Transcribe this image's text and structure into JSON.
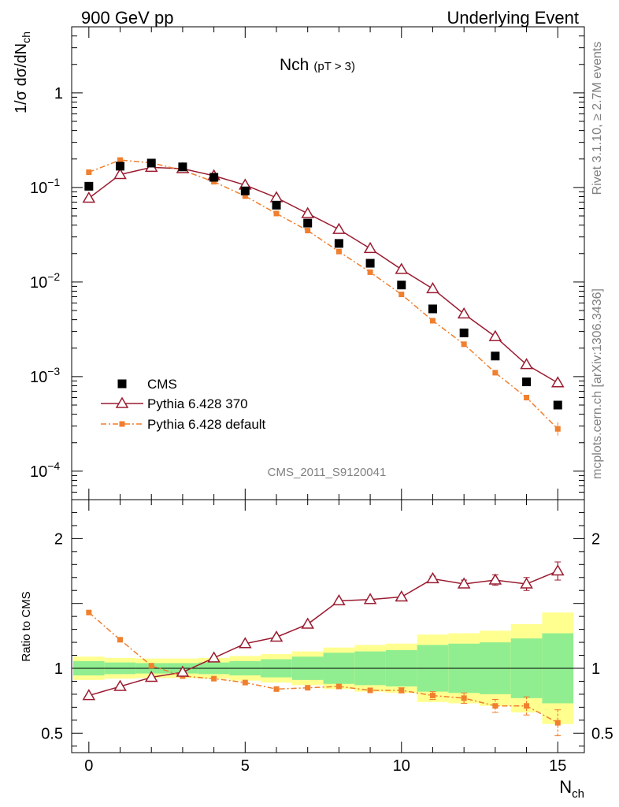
{
  "header": {
    "left": "900 GeV pp",
    "right": "Underlying Event"
  },
  "side": {
    "rivet": "Rivet 3.1.10, ≥ 2.7M events",
    "mcplots": "mcplots.cern.ch [arXiv:1306.3436]"
  },
  "watermark": "CMS_2011_S9120041",
  "chart_data": {
    "type": "scatter",
    "title": "Nch",
    "title_note": "(pT >  3)",
    "xlabel": "N",
    "xlabel_sub": "ch",
    "ylabel": "1/σ dσ/dN",
    "ylabel_sub": "ch",
    "ratio_ylabel": "Ratio to CMS",
    "xlim": [
      -0.55,
      15.85
    ],
    "ylim": [
      5e-05,
      5
    ],
    "yscale": "log",
    "ratio_ylim": [
      0.35,
      2.3
    ],
    "x_ticks": [
      0,
      5,
      10,
      15
    ],
    "y_ticks": [
      {
        "v": 0.0001,
        "base": "10",
        "exp": "−4"
      },
      {
        "v": 0.001,
        "base": "10",
        "exp": "−3"
      },
      {
        "v": 0.01,
        "base": "10",
        "exp": "−2"
      },
      {
        "v": 0.1,
        "base": "10",
        "exp": "−1"
      },
      {
        "v": 1,
        "base": "1",
        "exp": ""
      }
    ],
    "ratio_ticks": [
      {
        "v": 0.5,
        "label": "0.5"
      },
      {
        "v": 1,
        "label": "1"
      },
      {
        "v": 2,
        "label": "2"
      }
    ],
    "legend_position": "bottom-left",
    "x": [
      0,
      1,
      2,
      3,
      4,
      5,
      6,
      7,
      8,
      9,
      10,
      11,
      12,
      13,
      14,
      15
    ],
    "series": [
      {
        "name": "CMS",
        "color": "#000000",
        "marker": "square",
        "values": [
          0.103,
          0.168,
          0.181,
          0.165,
          0.128,
          0.092,
          0.065,
          0.042,
          0.0256,
          0.0158,
          0.0093,
          0.0052,
          0.0029,
          0.00165,
          0.00088,
          0.0005
        ]
      },
      {
        "name": "Pythia 6.428 370",
        "color": "#9b1b30",
        "marker": "open-triangle",
        "line": "solid",
        "values": [
          0.077,
          0.137,
          0.163,
          0.158,
          0.133,
          0.106,
          0.078,
          0.053,
          0.036,
          0.0226,
          0.0136,
          0.0085,
          0.0046,
          0.00265,
          0.00134,
          0.00086
        ],
        "ratio": [
          0.79,
          0.86,
          0.93,
          0.97,
          1.08,
          1.19,
          1.24,
          1.34,
          1.52,
          1.53,
          1.55,
          1.69,
          1.65,
          1.68,
          1.65,
          1.75
        ],
        "ratio_err": [
          0,
          0,
          0,
          0,
          0,
          0,
          0,
          0,
          0,
          0,
          0,
          0.02,
          0.03,
          0.04,
          0.05,
          0.07
        ]
      },
      {
        "name": "Pythia 6.428 default",
        "color": "#f07f2e",
        "marker": "filled-square",
        "line": "dashdot",
        "values": [
          0.145,
          0.195,
          0.182,
          0.152,
          0.115,
          0.081,
          0.053,
          0.035,
          0.021,
          0.0127,
          0.0074,
          0.0039,
          0.0022,
          0.0011,
          0.0006,
          0.00028
        ],
        "ratio": [
          1.43,
          1.22,
          1.02,
          0.94,
          0.92,
          0.89,
          0.84,
          0.85,
          0.86,
          0.83,
          0.83,
          0.79,
          0.77,
          0.71,
          0.71,
          0.58
        ],
        "ratio_err": [
          0,
          0,
          0,
          0,
          0,
          0,
          0,
          0,
          0,
          0,
          0.02,
          0.03,
          0.04,
          0.05,
          0.07,
          0.1
        ]
      }
    ],
    "ratio_bands": {
      "stat": [
        0.055,
        0.045,
        0.04,
        0.04,
        0.045,
        0.055,
        0.07,
        0.09,
        0.12,
        0.13,
        0.14,
        0.18,
        0.19,
        0.2,
        0.23,
        0.27
      ],
      "total": [
        0.09,
        0.08,
        0.075,
        0.075,
        0.08,
        0.095,
        0.11,
        0.13,
        0.16,
        0.18,
        0.19,
        0.26,
        0.27,
        0.29,
        0.34,
        0.43
      ]
    },
    "colors": {
      "stat_band": "#90ee90",
      "total_band": "#ffff90"
    }
  }
}
